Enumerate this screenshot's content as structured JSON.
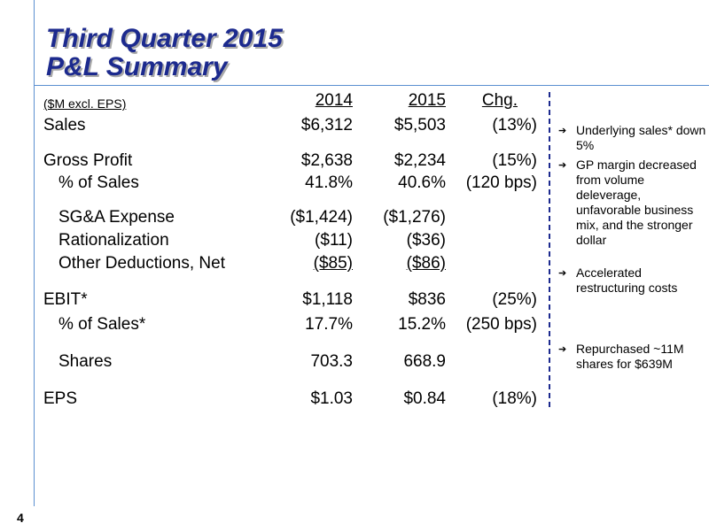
{
  "title": {
    "line1": "Third Quarter 2015",
    "line2": "P&L Summary"
  },
  "table": {
    "units": "($M excl. EPS)",
    "headers": [
      "2014",
      "2015",
      "Chg."
    ],
    "rows": [
      {
        "label": "Sales",
        "y2014": "$6,312",
        "y2015": "$5,503",
        "chg": "(13%)"
      },
      {
        "label": "Gross Profit",
        "y2014": "$2,638",
        "y2015": "$2,234",
        "chg": "(15%)"
      },
      {
        "label": "% of Sales",
        "y2014": "41.8%",
        "y2015": "40.6%",
        "chg": "(120 bps)"
      },
      {
        "label": "SG&A Expense",
        "y2014": "($1,424)",
        "y2015": "($1,276)",
        "chg": ""
      },
      {
        "label": "Rationalization",
        "y2014": "($11)",
        "y2015": "($36)",
        "chg": ""
      },
      {
        "label": "Other Deductions, Net",
        "y2014": "($85)",
        "y2015": "($86)",
        "chg": ""
      },
      {
        "label": "EBIT*",
        "y2014": "$1,118",
        "y2015": "$836",
        "chg": "(25%)"
      },
      {
        "label": "% of Sales*",
        "y2014": "17.7%",
        "y2015": "15.2%",
        "chg": "(250 bps)"
      },
      {
        "label": "Shares",
        "y2014": "703.3",
        "y2015": "668.9",
        "chg": ""
      },
      {
        "label": "EPS",
        "y2014": "$1.03",
        "y2015": "$0.84",
        "chg": "(18%)"
      }
    ]
  },
  "commentary": {
    "bullet_icon": "right-arrow-icon",
    "items": [
      "Underlying sales* down 5%",
      "GP margin decreased from volume deleverage, unfavorable business mix, and the stronger dollar",
      "Accelerated restructuring costs",
      "Repurchased ~11M shares for $639M"
    ]
  },
  "page_number": "4",
  "colors": {
    "title": "#1c2a8e",
    "rule": "#5b8fd1",
    "divider": "#1c2a8e"
  }
}
